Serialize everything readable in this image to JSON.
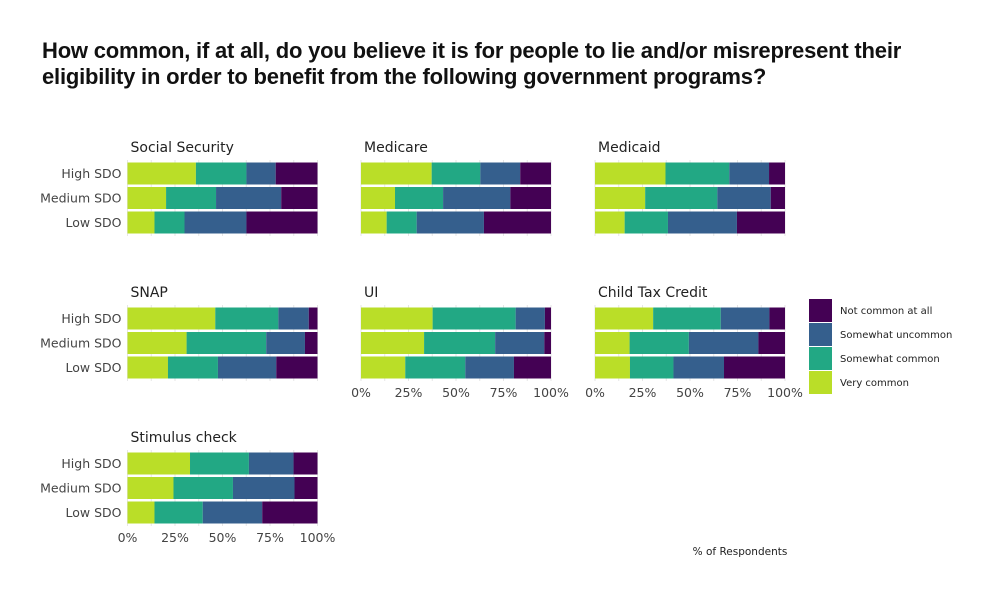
{
  "chart_data": {
    "type": "bar",
    "orientation": "horizontal",
    "stacked": true,
    "normalized": true,
    "title": "How common, if at all, do you believe it is for people to lie and/or misrepresent their eligibility in order to benefit from the following government programs?",
    "xlabel": "% of Respondents",
    "ylabel": "",
    "xlim": [
      0,
      100
    ],
    "x_ticks": [
      "0%",
      "25%",
      "50%",
      "75%",
      "100%"
    ],
    "categories": [
      "High SDO",
      "Medium SDO",
      "Low SDO"
    ],
    "legend": {
      "placement": "right",
      "entries": [
        {
          "name": "Not common at all",
          "color": "#440154"
        },
        {
          "name": "Somewhat uncommon",
          "color": "#355F8D"
        },
        {
          "name": "Somewhat common",
          "color": "#22A884"
        },
        {
          "name": "Very common",
          "color": "#BADE28"
        }
      ]
    },
    "series_order": [
      "Very common",
      "Somewhat common",
      "Somewhat uncommon",
      "Not common at all"
    ],
    "colors": {
      "Very common": "#BADE28",
      "Somewhat common": "#22A884",
      "Somewhat uncommon": "#355F8D",
      "Not common at all": "#440154"
    },
    "panels": [
      {
        "title": "Social Security",
        "rows": [
          {
            "category": "High SDO",
            "values": [
              36.0,
              26.6,
              15.4,
              22.0
            ]
          },
          {
            "category": "Medium SDO",
            "values": [
              20.3,
              26.3,
              34.3,
              19.1
            ]
          },
          {
            "category": "Low SDO",
            "values": [
              14.2,
              15.8,
              32.6,
              37.4
            ]
          }
        ]
      },
      {
        "title": "Medicare",
        "rows": [
          {
            "category": "High SDO",
            "values": [
              37.2,
              25.6,
              21.0,
              16.2
            ]
          },
          {
            "category": "Medium SDO",
            "values": [
              17.9,
              25.3,
              35.4,
              21.4
            ]
          },
          {
            "category": "Low SDO",
            "values": [
              13.5,
              15.8,
              35.4,
              35.3
            ]
          }
        ]
      },
      {
        "title": "Medicaid",
        "rows": [
          {
            "category": "High SDO",
            "values": [
              37.1,
              33.6,
              20.9,
              8.4
            ]
          },
          {
            "category": "Medium SDO",
            "values": [
              26.4,
              38.0,
              28.1,
              7.5
            ]
          },
          {
            "category": "Low SDO",
            "values": [
              15.6,
              22.8,
              36.3,
              25.3
            ]
          }
        ]
      },
      {
        "title": "SNAP",
        "rows": [
          {
            "category": "High SDO",
            "values": [
              46.2,
              33.2,
              16.0,
              4.6
            ]
          },
          {
            "category": "Medium SDO",
            "values": [
              31.1,
              41.9,
              20.4,
              6.6
            ]
          },
          {
            "category": "Low SDO",
            "values": [
              21.3,
              26.3,
              30.7,
              21.7
            ]
          }
        ]
      },
      {
        "title": "UI",
        "rows": [
          {
            "category": "High SDO",
            "values": [
              37.7,
              43.7,
              15.4,
              3.2
            ]
          },
          {
            "category": "Medium SDO",
            "values": [
              33.2,
              37.4,
              25.9,
              3.5
            ]
          },
          {
            "category": "Low SDO",
            "values": [
              23.3,
              31.6,
              25.6,
              19.5
            ]
          }
        ]
      },
      {
        "title": "Child Tax Credit",
        "rows": [
          {
            "category": "High SDO",
            "values": [
              30.6,
              35.6,
              25.6,
              8.2
            ]
          },
          {
            "category": "Medium SDO",
            "values": [
              18.2,
              31.2,
              36.6,
              14.0
            ]
          },
          {
            "category": "Low SDO",
            "values": [
              18.4,
              22.9,
              26.6,
              32.1
            ]
          }
        ]
      },
      {
        "title": "Stimulus check",
        "rows": [
          {
            "category": "High SDO",
            "values": [
              32.9,
              31.0,
              23.5,
              12.6
            ]
          },
          {
            "category": "Medium SDO",
            "values": [
              24.2,
              31.3,
              32.4,
              12.1
            ]
          },
          {
            "category": "Low SDO",
            "values": [
              14.2,
              25.4,
              31.3,
              29.1
            ]
          }
        ]
      }
    ]
  }
}
